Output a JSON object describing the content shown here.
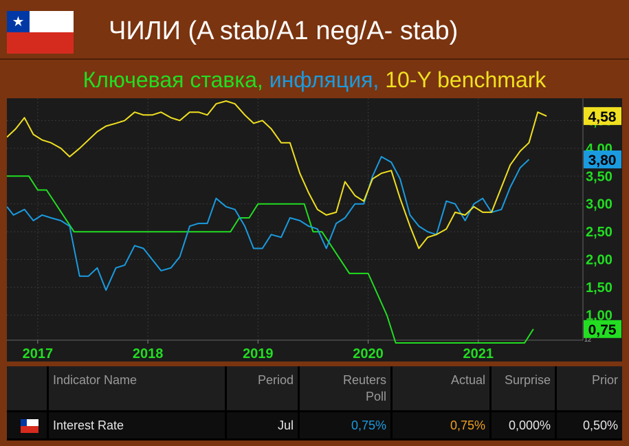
{
  "header": {
    "title": "ЧИЛИ (A stab/A1 neg/A- stab)",
    "subtitle_parts": [
      {
        "text": "Ключевая ставка, ",
        "color": "#22dd22"
      },
      {
        "text": "инфляция, ",
        "color": "#1a9be0"
      },
      {
        "text": "10-Y benchmark",
        "color": "#f0e020"
      }
    ],
    "flag_icon": "chile-flag-icon"
  },
  "chart_data": {
    "type": "line",
    "xlim": [
      2016.72,
      2021.95
    ],
    "ylim": [
      0.55,
      4.9
    ],
    "x_ticks": [
      2017,
      2018,
      2019,
      2020,
      2021
    ],
    "x_tick_labels": [
      "2017",
      "2018",
      "2019",
      "2020",
      "2021"
    ],
    "y_ticks": [
      1.0,
      1.5,
      2.0,
      2.5,
      3.0,
      3.5,
      4.0,
      4.5
    ],
    "y_tick_labels": [
      "1,00",
      "1,50",
      "2,00",
      "2,50",
      "3,00",
      "3,50",
      "4,00",
      "4,50"
    ],
    "grid": true,
    "series": [
      {
        "key": "key_rate",
        "color": "#22dd22",
        "last_label": "0,75",
        "points": [
          [
            2016.72,
            3.5
          ],
          [
            2016.92,
            3.5
          ],
          [
            2017.0,
            3.25
          ],
          [
            2017.08,
            3.25
          ],
          [
            2017.33,
            2.5
          ],
          [
            2017.5,
            2.5
          ],
          [
            2018.0,
            2.5
          ],
          [
            2018.5,
            2.5
          ],
          [
            2018.75,
            2.5
          ],
          [
            2018.83,
            2.75
          ],
          [
            2018.92,
            2.75
          ],
          [
            2019.0,
            3.0
          ],
          [
            2019.1,
            3.0
          ],
          [
            2019.42,
            3.0
          ],
          [
            2019.5,
            2.5
          ],
          [
            2019.58,
            2.5
          ],
          [
            2019.83,
            1.75
          ],
          [
            2020.0,
            1.75
          ],
          [
            2020.17,
            1.0
          ],
          [
            2020.25,
            0.5
          ],
          [
            2021.0,
            0.5
          ],
          [
            2021.42,
            0.5
          ],
          [
            2021.5,
            0.75
          ]
        ]
      },
      {
        "key": "inflation",
        "color": "#1a9be0",
        "last_label": "3,80",
        "points": [
          [
            2016.72,
            2.95
          ],
          [
            2016.78,
            2.8
          ],
          [
            2016.88,
            2.9
          ],
          [
            2016.96,
            2.7
          ],
          [
            2017.04,
            2.8
          ],
          [
            2017.12,
            2.75
          ],
          [
            2017.21,
            2.7
          ],
          [
            2017.29,
            2.6
          ],
          [
            2017.38,
            1.7
          ],
          [
            2017.46,
            1.7
          ],
          [
            2017.54,
            1.85
          ],
          [
            2017.62,
            1.45
          ],
          [
            2017.71,
            1.85
          ],
          [
            2017.79,
            1.9
          ],
          [
            2017.88,
            2.25
          ],
          [
            2017.96,
            2.2
          ],
          [
            2018.04,
            2.0
          ],
          [
            2018.12,
            1.8
          ],
          [
            2018.21,
            1.85
          ],
          [
            2018.29,
            2.05
          ],
          [
            2018.38,
            2.6
          ],
          [
            2018.46,
            2.65
          ],
          [
            2018.54,
            2.65
          ],
          [
            2018.62,
            3.1
          ],
          [
            2018.71,
            2.95
          ],
          [
            2018.79,
            2.9
          ],
          [
            2018.88,
            2.6
          ],
          [
            2018.96,
            2.2
          ],
          [
            2019.04,
            2.2
          ],
          [
            2019.12,
            2.45
          ],
          [
            2019.21,
            2.4
          ],
          [
            2019.29,
            2.75
          ],
          [
            2019.38,
            2.7
          ],
          [
            2019.46,
            2.6
          ],
          [
            2019.54,
            2.55
          ],
          [
            2019.62,
            2.2
          ],
          [
            2019.71,
            2.65
          ],
          [
            2019.79,
            2.75
          ],
          [
            2019.88,
            3.0
          ],
          [
            2019.96,
            3.0
          ],
          [
            2020.04,
            3.5
          ],
          [
            2020.12,
            3.85
          ],
          [
            2020.21,
            3.75
          ],
          [
            2020.29,
            3.45
          ],
          [
            2020.38,
            2.8
          ],
          [
            2020.46,
            2.6
          ],
          [
            2020.54,
            2.5
          ],
          [
            2020.62,
            2.45
          ],
          [
            2020.71,
            3.05
          ],
          [
            2020.79,
            3.0
          ],
          [
            2020.88,
            2.7
          ],
          [
            2020.96,
            3.0
          ],
          [
            2021.04,
            3.1
          ],
          [
            2021.12,
            2.85
          ],
          [
            2021.21,
            2.9
          ],
          [
            2021.29,
            3.3
          ],
          [
            2021.38,
            3.65
          ],
          [
            2021.46,
            3.8
          ]
        ]
      },
      {
        "key": "benchmark_10y",
        "color": "#f0e020",
        "last_label": "4,58",
        "points": [
          [
            2016.72,
            4.2
          ],
          [
            2016.8,
            4.35
          ],
          [
            2016.88,
            4.55
          ],
          [
            2016.96,
            4.25
          ],
          [
            2017.04,
            4.15
          ],
          [
            2017.12,
            4.1
          ],
          [
            2017.21,
            4.0
          ],
          [
            2017.29,
            3.85
          ],
          [
            2017.38,
            4.0
          ],
          [
            2017.46,
            4.15
          ],
          [
            2017.54,
            4.3
          ],
          [
            2017.62,
            4.4
          ],
          [
            2017.71,
            4.45
          ],
          [
            2017.79,
            4.5
          ],
          [
            2017.88,
            4.65
          ],
          [
            2017.96,
            4.6
          ],
          [
            2018.04,
            4.6
          ],
          [
            2018.12,
            4.65
          ],
          [
            2018.21,
            4.55
          ],
          [
            2018.29,
            4.5
          ],
          [
            2018.38,
            4.65
          ],
          [
            2018.46,
            4.65
          ],
          [
            2018.54,
            4.6
          ],
          [
            2018.62,
            4.8
          ],
          [
            2018.71,
            4.85
          ],
          [
            2018.79,
            4.8
          ],
          [
            2018.88,
            4.6
          ],
          [
            2018.96,
            4.45
          ],
          [
            2019.04,
            4.5
          ],
          [
            2019.12,
            4.35
          ],
          [
            2019.21,
            4.1
          ],
          [
            2019.29,
            4.1
          ],
          [
            2019.38,
            3.55
          ],
          [
            2019.46,
            3.2
          ],
          [
            2019.54,
            2.9
          ],
          [
            2019.62,
            2.8
          ],
          [
            2019.71,
            2.85
          ],
          [
            2019.79,
            3.4
          ],
          [
            2019.88,
            3.15
          ],
          [
            2019.96,
            3.05
          ],
          [
            2020.04,
            3.45
          ],
          [
            2020.12,
            3.55
          ],
          [
            2020.21,
            3.6
          ],
          [
            2020.29,
            3.1
          ],
          [
            2020.38,
            2.6
          ],
          [
            2020.46,
            2.2
          ],
          [
            2020.54,
            2.4
          ],
          [
            2020.62,
            2.45
          ],
          [
            2020.71,
            2.55
          ],
          [
            2020.79,
            2.85
          ],
          [
            2020.88,
            2.8
          ],
          [
            2020.96,
            2.95
          ],
          [
            2021.04,
            2.85
          ],
          [
            2021.12,
            2.85
          ],
          [
            2021.21,
            3.3
          ],
          [
            2021.29,
            3.7
          ],
          [
            2021.38,
            3.95
          ],
          [
            2021.46,
            4.1
          ],
          [
            2021.54,
            4.65
          ],
          [
            2021.62,
            4.58
          ]
        ]
      }
    ],
    "corner_label": "12"
  },
  "table": {
    "headers": [
      "Indicator Name",
      "Period",
      "Reuters Poll",
      "Actual",
      "Surprise",
      "Prior"
    ],
    "row": {
      "flag_icon": "chile-flag-icon",
      "indicator": "Interest Rate",
      "period": "Jul",
      "reuters_poll": "0,75%",
      "actual": "0,75%",
      "surprise": "0,000%",
      "prior": "0,50%"
    },
    "colors": {
      "poll": "#1a9be0",
      "actual": "#f0a020"
    }
  }
}
